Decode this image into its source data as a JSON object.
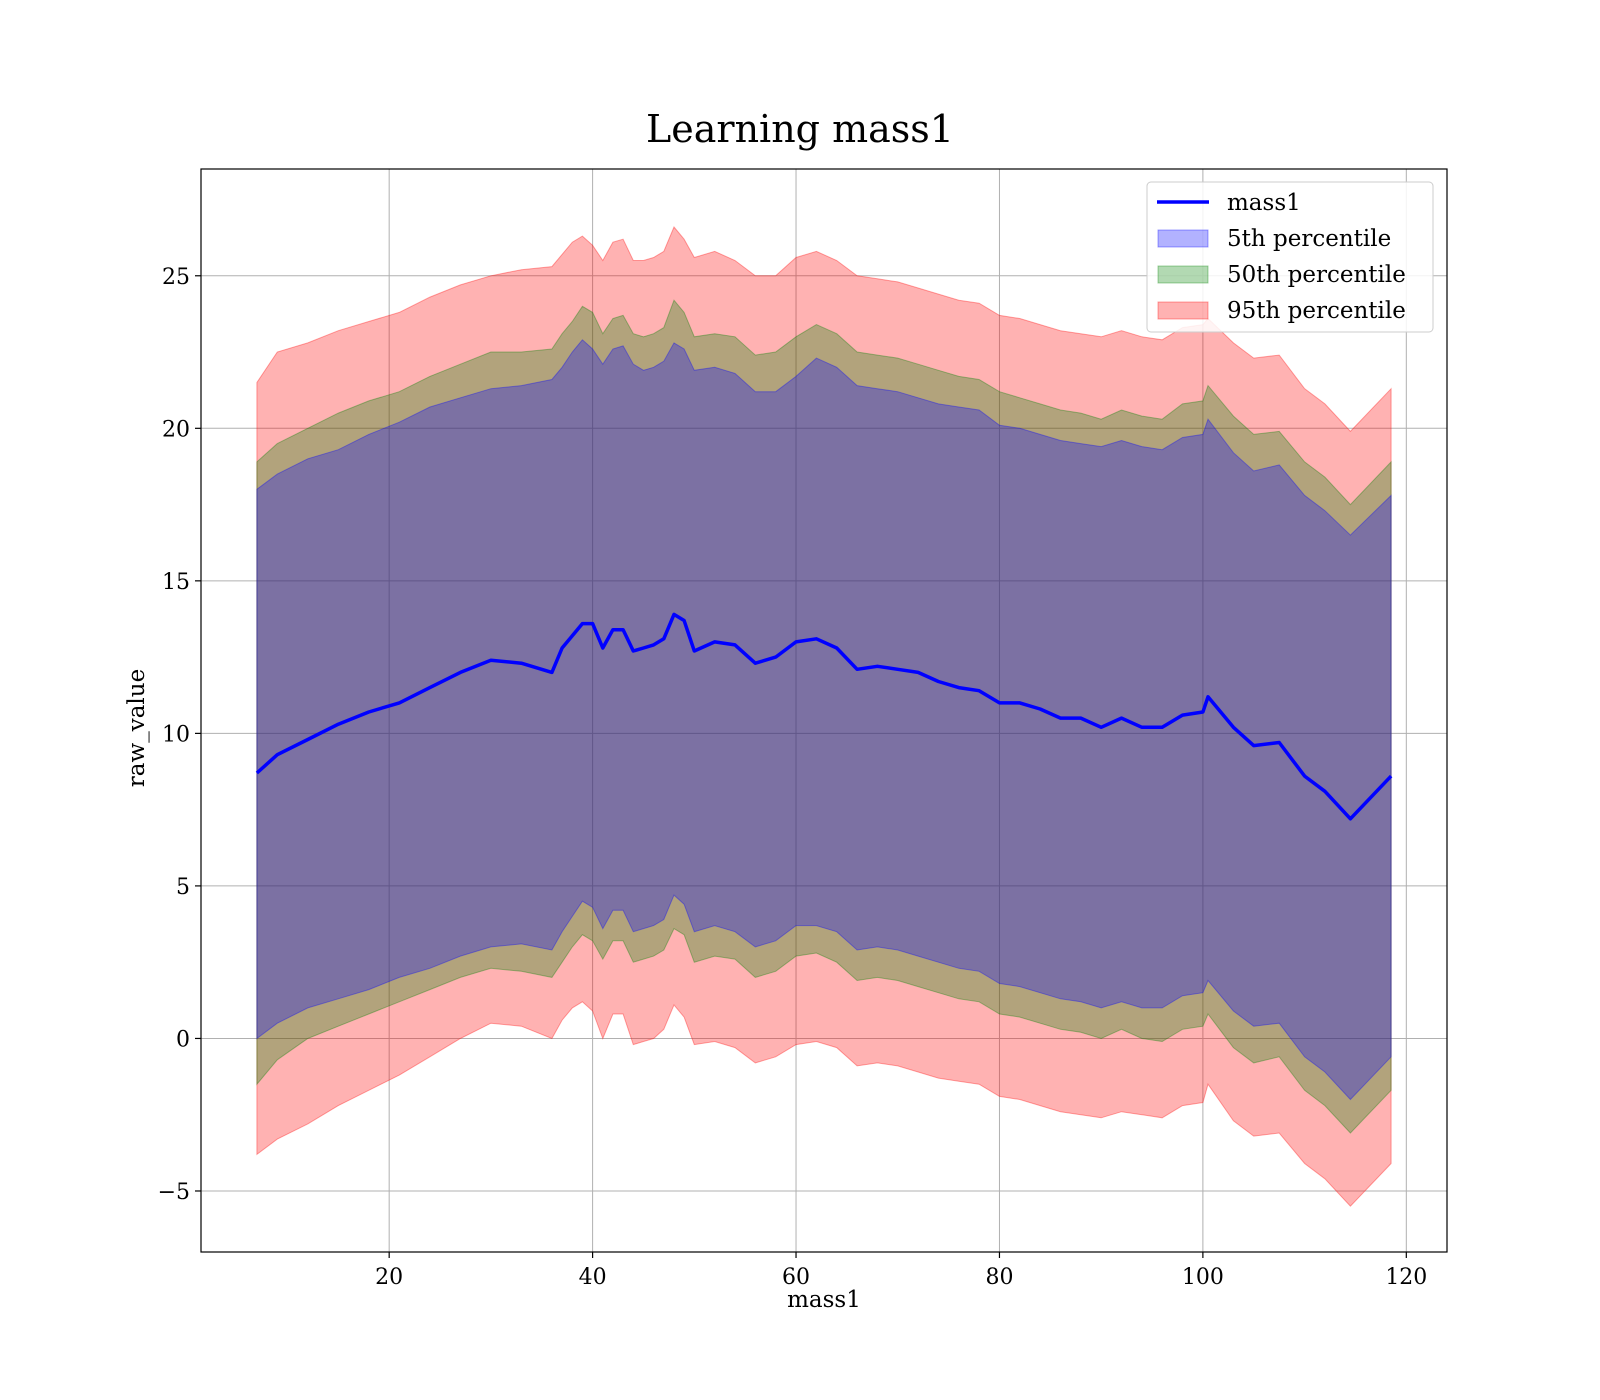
{
  "chart_data": {
    "type": "area",
    "title": "Learning mass1",
    "xlabel": "mass1",
    "ylabel": "raw_value",
    "xlim": [
      1.5,
      124
    ],
    "ylim": [
      -7,
      28.5
    ],
    "xticks": [
      20,
      40,
      60,
      80,
      100,
      120
    ],
    "yticks": [
      -5,
      0,
      5,
      10,
      15,
      20,
      25
    ],
    "ytick_labels": [
      "−5",
      "0",
      "5",
      "10",
      "15",
      "20",
      "25"
    ],
    "grid": true,
    "legend_position": "top-right",
    "legend": [
      {
        "label": "mass1",
        "kind": "line",
        "color": "#0000ff"
      },
      {
        "label": "5th percentile",
        "kind": "band",
        "color": "#0000ff"
      },
      {
        "label": "50th percentile",
        "kind": "band",
        "color": "#008000"
      },
      {
        "label": "95th percentile",
        "kind": "band",
        "color": "#ff0000"
      }
    ],
    "x": [
      7,
      9,
      12,
      15,
      18,
      21,
      24,
      27,
      30,
      33,
      36,
      37,
      38,
      39,
      40,
      41,
      42,
      43,
      44,
      45,
      46,
      47,
      48,
      49,
      50,
      52,
      54,
      56,
      58,
      60,
      62,
      64,
      66,
      68,
      70,
      72,
      74,
      76,
      78,
      80,
      82,
      84,
      86,
      88,
      90,
      92,
      94,
      96,
      98,
      100,
      100.5,
      103,
      105,
      107.5,
      110,
      112,
      114.5,
      118.5
    ],
    "series": [
      {
        "name": "mass1",
        "values": [
          8.7,
          9.3,
          9.8,
          10.3,
          10.7,
          11.0,
          11.5,
          12.0,
          12.4,
          12.3,
          12.0,
          12.8,
          13.2,
          13.6,
          13.6,
          12.8,
          13.4,
          13.4,
          12.7,
          12.8,
          12.9,
          13.1,
          13.9,
          13.7,
          12.7,
          13.0,
          12.9,
          12.3,
          12.5,
          13.0,
          13.1,
          12.8,
          12.1,
          12.2,
          12.1,
          12.0,
          11.7,
          11.5,
          11.4,
          11.0,
          11.0,
          10.8,
          10.5,
          10.5,
          10.2,
          10.5,
          10.2,
          10.2,
          10.6,
          10.7,
          11.2,
          10.2,
          9.6,
          9.7,
          8.6,
          8.1,
          7.2,
          8.6
        ]
      }
    ],
    "bands": [
      {
        "name": "5th percentile",
        "upper": [
          18.0,
          18.5,
          19.0,
          19.3,
          19.8,
          20.2,
          20.7,
          21.0,
          21.3,
          21.4,
          21.6,
          22.0,
          22.5,
          22.9,
          22.6,
          22.1,
          22.6,
          22.7,
          22.1,
          21.9,
          22.0,
          22.2,
          22.8,
          22.6,
          21.9,
          22.0,
          21.8,
          21.2,
          21.2,
          21.7,
          22.3,
          22.0,
          21.4,
          21.3,
          21.2,
          21.0,
          20.8,
          20.7,
          20.6,
          20.1,
          20.0,
          19.8,
          19.6,
          19.5,
          19.4,
          19.6,
          19.4,
          19.3,
          19.7,
          19.8,
          20.3,
          19.2,
          18.6,
          18.8,
          17.8,
          17.3,
          16.5,
          17.8
        ],
        "lower": [
          0.0,
          0.5,
          1.0,
          1.3,
          1.6,
          2.0,
          2.3,
          2.7,
          3.0,
          3.1,
          2.9,
          3.5,
          4.0,
          4.5,
          4.3,
          3.6,
          4.2,
          4.2,
          3.5,
          3.6,
          3.7,
          3.9,
          4.7,
          4.4,
          3.5,
          3.7,
          3.5,
          3.0,
          3.2,
          3.7,
          3.7,
          3.5,
          2.9,
          3.0,
          2.9,
          2.7,
          2.5,
          2.3,
          2.2,
          1.8,
          1.7,
          1.5,
          1.3,
          1.2,
          1.0,
          1.2,
          1.0,
          1.0,
          1.4,
          1.5,
          1.9,
          0.9,
          0.4,
          0.5,
          -0.6,
          -1.1,
          -2.0,
          -0.6
        ]
      },
      {
        "name": "50th percentile",
        "upper": [
          18.9,
          19.5,
          20.0,
          20.5,
          20.9,
          21.2,
          21.7,
          22.1,
          22.5,
          22.5,
          22.6,
          23.1,
          23.5,
          24.0,
          23.8,
          23.1,
          23.6,
          23.7,
          23.1,
          23.0,
          23.1,
          23.3,
          24.2,
          23.8,
          23.0,
          23.1,
          23.0,
          22.4,
          22.5,
          23.0,
          23.4,
          23.1,
          22.5,
          22.4,
          22.3,
          22.1,
          21.9,
          21.7,
          21.6,
          21.2,
          21.0,
          20.8,
          20.6,
          20.5,
          20.3,
          20.6,
          20.4,
          20.3,
          20.8,
          20.9,
          21.4,
          20.4,
          19.8,
          19.9,
          18.9,
          18.4,
          17.5,
          18.9
        ],
        "lower": [
          -1.5,
          -0.7,
          0.0,
          0.4,
          0.8,
          1.2,
          1.6,
          2.0,
          2.3,
          2.2,
          2.0,
          2.5,
          3.0,
          3.4,
          3.2,
          2.6,
          3.2,
          3.2,
          2.5,
          2.6,
          2.7,
          2.9,
          3.6,
          3.4,
          2.5,
          2.7,
          2.6,
          2.0,
          2.2,
          2.7,
          2.8,
          2.5,
          1.9,
          2.0,
          1.9,
          1.7,
          1.5,
          1.3,
          1.2,
          0.8,
          0.7,
          0.5,
          0.3,
          0.2,
          0.0,
          0.3,
          0.0,
          -0.1,
          0.3,
          0.4,
          0.8,
          -0.3,
          -0.8,
          -0.6,
          -1.7,
          -2.2,
          -3.1,
          -1.7
        ]
      },
      {
        "name": "95th percentile",
        "upper": [
          21.5,
          22.5,
          22.8,
          23.2,
          23.5,
          23.8,
          24.3,
          24.7,
          25.0,
          25.2,
          25.3,
          25.7,
          26.1,
          26.3,
          26.0,
          25.5,
          26.1,
          26.2,
          25.5,
          25.5,
          25.6,
          25.8,
          26.6,
          26.2,
          25.6,
          25.8,
          25.5,
          25.0,
          25.0,
          25.6,
          25.8,
          25.5,
          25.0,
          24.9,
          24.8,
          24.6,
          24.4,
          24.2,
          24.1,
          23.7,
          23.6,
          23.4,
          23.2,
          23.1,
          23.0,
          23.2,
          23.0,
          22.9,
          23.3,
          23.4,
          23.6,
          22.8,
          22.3,
          22.4,
          21.3,
          20.8,
          19.9,
          21.3
        ],
        "lower": [
          -3.8,
          -3.3,
          -2.8,
          -2.2,
          -1.7,
          -1.2,
          -0.6,
          0.0,
          0.5,
          0.4,
          0.0,
          0.6,
          1.0,
          1.2,
          0.9,
          0.0,
          0.8,
          0.8,
          -0.2,
          -0.1,
          0.0,
          0.3,
          1.1,
          0.7,
          -0.2,
          -0.1,
          -0.3,
          -0.8,
          -0.6,
          -0.2,
          -0.1,
          -0.3,
          -0.9,
          -0.8,
          -0.9,
          -1.1,
          -1.3,
          -1.4,
          -1.5,
          -1.9,
          -2.0,
          -2.2,
          -2.4,
          -2.5,
          -2.6,
          -2.4,
          -2.5,
          -2.6,
          -2.2,
          -2.1,
          -1.5,
          -2.7,
          -3.2,
          -3.1,
          -4.1,
          -4.6,
          -5.5,
          -4.1
        ]
      }
    ],
    "colors": {
      "line": "#0000ff",
      "band_5": "#0000ff",
      "band_50": "#008000",
      "band_95": "#ff0000",
      "grid": "#b0b0b0"
    }
  }
}
